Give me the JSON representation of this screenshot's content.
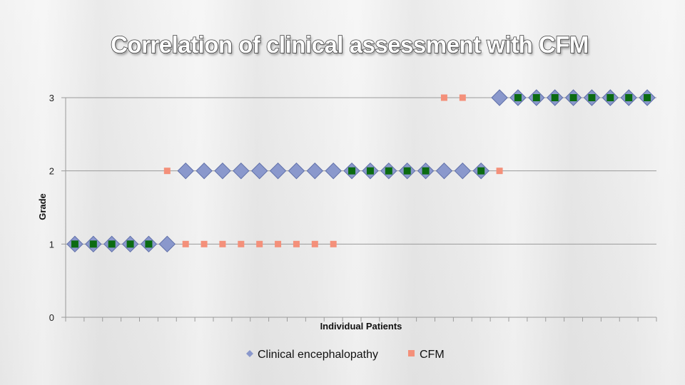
{
  "slide": {
    "title": "Correlation of clinical assessment with CFM"
  },
  "colors": {
    "clinical": "#8a98cc",
    "clinical_edge": "#5f6fa8",
    "cfm": "#f4907a",
    "overlap": "#0b6b12",
    "grid": "#9a9a9a"
  },
  "chart_data": {
    "type": "scatter",
    "title": "",
    "xlabel": "Individual Patients",
    "ylabel": "Grade",
    "ylim": [
      0,
      3
    ],
    "yticks": [
      "0",
      "1",
      "2",
      "3"
    ],
    "x": [
      1,
      2,
      3,
      4,
      5,
      6,
      7,
      8,
      9,
      10,
      11,
      12,
      13,
      14,
      15,
      16,
      17,
      18,
      19,
      20,
      21,
      22,
      23,
      24,
      25,
      26,
      27,
      28,
      29,
      30,
      31,
      32
    ],
    "series": [
      {
        "name": "Clinical encephalopathy",
        "marker": "diamond",
        "values": [
          1,
          1,
          1,
          1,
          1,
          1,
          2,
          2,
          2,
          2,
          2,
          2,
          2,
          2,
          2,
          2,
          2,
          2,
          2,
          2,
          2,
          2,
          2,
          3,
          3,
          3,
          3,
          3,
          3,
          3,
          3,
          3
        ]
      },
      {
        "name": "CFM",
        "marker": "square",
        "values": [
          1,
          1,
          1,
          1,
          1,
          2,
          1,
          1,
          1,
          1,
          1,
          1,
          1,
          1,
          1,
          2,
          2,
          2,
          2,
          2,
          3,
          3,
          2,
          2,
          3,
          3,
          3,
          3,
          3,
          3,
          3,
          3
        ]
      }
    ],
    "legend_position": "bottom",
    "grid": "horizontal"
  }
}
